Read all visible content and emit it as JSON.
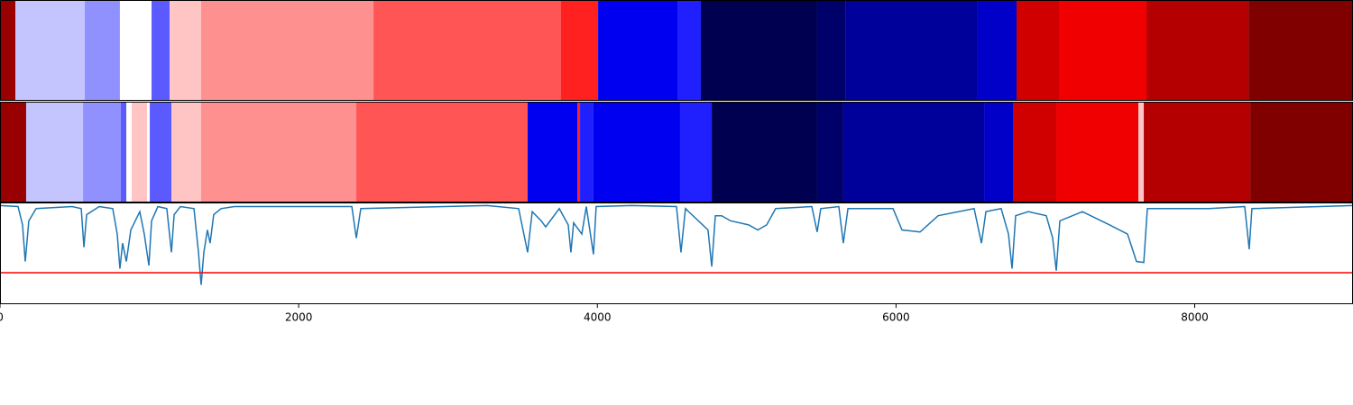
{
  "chart_data": {
    "type": "line",
    "xlim": [
      0,
      9060
    ],
    "xticks": [
      0,
      2000,
      4000,
      6000,
      8000
    ],
    "ylim": [
      0,
      1
    ],
    "tracks": [
      {
        "segments": [
          {
            "start": 0,
            "end": 103,
            "color": "#990000"
          },
          {
            "start": 103,
            "end": 568,
            "color": "#c4c4ff"
          },
          {
            "start": 568,
            "end": 803,
            "color": "#9090ff"
          },
          {
            "start": 803,
            "end": 1015,
            "color": "#ffffff"
          },
          {
            "start": 1015,
            "end": 1136,
            "color": "#5a5aff"
          },
          {
            "start": 1136,
            "end": 1347,
            "color": "#ffc4c4"
          },
          {
            "start": 1347,
            "end": 2501,
            "color": "#ff9090"
          },
          {
            "start": 2501,
            "end": 3757,
            "color": "#ff5555"
          },
          {
            "start": 3757,
            "end": 4005,
            "color": "#ff2020"
          },
          {
            "start": 4005,
            "end": 4536,
            "color": "#0000f0"
          },
          {
            "start": 4536,
            "end": 4693,
            "color": "#2020ff"
          },
          {
            "start": 4693,
            "end": 5472,
            "color": "#000050"
          },
          {
            "start": 5472,
            "end": 5660,
            "color": "#00006a"
          },
          {
            "start": 5660,
            "end": 6547,
            "color": "#00009a"
          },
          {
            "start": 6547,
            "end": 6807,
            "color": "#0000c8"
          },
          {
            "start": 6807,
            "end": 7091,
            "color": "#d00000"
          },
          {
            "start": 7091,
            "end": 7677,
            "color": "#f00000"
          },
          {
            "start": 7677,
            "end": 8360,
            "color": "#b40000"
          },
          {
            "start": 8360,
            "end": 9060,
            "color": "#800000"
          }
        ]
      },
      {
        "segments": [
          {
            "start": 0,
            "end": 175,
            "color": "#990000"
          },
          {
            "start": 175,
            "end": 556,
            "color": "#c4c4ff"
          },
          {
            "start": 556,
            "end": 809,
            "color": "#9090ff"
          },
          {
            "start": 809,
            "end": 846,
            "color": "#5a5aff"
          },
          {
            "start": 846,
            "end": 882,
            "color": "#ffffff"
          },
          {
            "start": 882,
            "end": 985,
            "color": "#ffc4c4"
          },
          {
            "start": 985,
            "end": 1003,
            "color": "#ffffff"
          },
          {
            "start": 1003,
            "end": 1148,
            "color": "#5a5aff"
          },
          {
            "start": 1148,
            "end": 1347,
            "color": "#ffc4c4"
          },
          {
            "start": 1347,
            "end": 2386,
            "color": "#ff9090"
          },
          {
            "start": 2386,
            "end": 3533,
            "color": "#ff5555"
          },
          {
            "start": 3533,
            "end": 3866,
            "color": "#0000f0"
          },
          {
            "start": 3866,
            "end": 3884,
            "color": "#ff2020"
          },
          {
            "start": 3884,
            "end": 3974,
            "color": "#2020ff"
          },
          {
            "start": 3974,
            "end": 4554,
            "color": "#0000f0"
          },
          {
            "start": 4554,
            "end": 4766,
            "color": "#2020ff"
          },
          {
            "start": 4766,
            "end": 5472,
            "color": "#000050"
          },
          {
            "start": 5472,
            "end": 5647,
            "color": "#00006a"
          },
          {
            "start": 5647,
            "end": 6590,
            "color": "#00009a"
          },
          {
            "start": 6590,
            "end": 6783,
            "color": "#0000c8"
          },
          {
            "start": 6783,
            "end": 7073,
            "color": "#d00000"
          },
          {
            "start": 7073,
            "end": 7623,
            "color": "#f00000"
          },
          {
            "start": 7623,
            "end": 7659,
            "color": "#ffc4c4"
          },
          {
            "start": 7659,
            "end": 8372,
            "color": "#b40000"
          },
          {
            "start": 8372,
            "end": 9060,
            "color": "#800000"
          }
        ]
      }
    ],
    "x": [
      0,
      121,
      151,
      169,
      193,
      242,
      483,
      544,
      562,
      580,
      664,
      755,
      785,
      803,
      821,
      846,
      876,
      906,
      936,
      966,
      997,
      1015,
      1057,
      1117,
      1148,
      1166,
      1208,
      1299,
      1329,
      1347,
      1365,
      1389,
      1407,
      1431,
      1480,
      1570,
      2356,
      2386,
      2416,
      3262,
      3473,
      3533,
      3564,
      3624,
      3654,
      3745,
      3805,
      3823,
      3841,
      3896,
      3926,
      3974,
      3992,
      4228,
      4530,
      4560,
      4590,
      4741,
      4766,
      4790,
      4832,
      4892,
      5013,
      5074,
      5134,
      5194,
      5436,
      5472,
      5496,
      5617,
      5647,
      5678,
      5980,
      6040,
      6161,
      6282,
      6523,
      6572,
      6602,
      6704,
      6753,
      6777,
      6801,
      6886,
      7006,
      7049,
      7073,
      7097,
      7248,
      7429,
      7550,
      7610,
      7659,
      7683,
      8094,
      8335,
      8365,
      8383,
      9060
    ],
    "values": [
      0.97,
      0.96,
      0.78,
      0.42,
      0.82,
      0.94,
      0.96,
      0.94,
      0.56,
      0.88,
      0.96,
      0.94,
      0.69,
      0.35,
      0.6,
      0.42,
      0.73,
      0.82,
      0.91,
      0.69,
      0.38,
      0.82,
      0.96,
      0.94,
      0.51,
      0.88,
      0.96,
      0.94,
      0.51,
      0.19,
      0.51,
      0.73,
      0.6,
      0.88,
      0.94,
      0.96,
      0.96,
      0.65,
      0.94,
      0.97,
      0.94,
      0.51,
      0.91,
      0.82,
      0.76,
      0.94,
      0.78,
      0.51,
      0.8,
      0.69,
      0.96,
      0.49,
      0.96,
      0.97,
      0.96,
      0.51,
      0.94,
      0.73,
      0.37,
      0.87,
      0.87,
      0.82,
      0.78,
      0.73,
      0.78,
      0.94,
      0.96,
      0.71,
      0.94,
      0.96,
      0.6,
      0.94,
      0.94,
      0.73,
      0.71,
      0.87,
      0.94,
      0.6,
      0.91,
      0.94,
      0.69,
      0.35,
      0.87,
      0.91,
      0.87,
      0.65,
      0.33,
      0.82,
      0.91,
      0.78,
      0.69,
      0.42,
      0.41,
      0.94,
      0.94,
      0.96,
      0.54,
      0.94,
      0.97
    ],
    "color": "#1f77b4",
    "threshold": 0.31,
    "threshold_color": "#ff0000"
  }
}
